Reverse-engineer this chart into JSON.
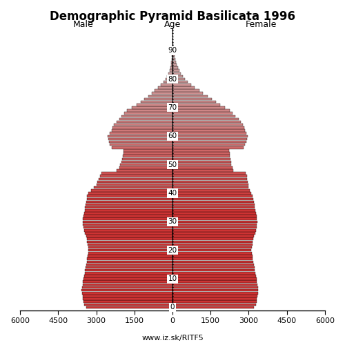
{
  "title": "Demographic Pyramid Basilicata 1996",
  "male_label": "Male",
  "female_label": "Female",
  "age_label": "Age",
  "url_text": "www.iz.sk/RITF5",
  "xlim": 6000,
  "ages": [
    0,
    1,
    2,
    3,
    4,
    5,
    6,
    7,
    8,
    9,
    10,
    11,
    12,
    13,
    14,
    15,
    16,
    17,
    18,
    19,
    20,
    21,
    22,
    23,
    24,
    25,
    26,
    27,
    28,
    29,
    30,
    31,
    32,
    33,
    34,
    35,
    36,
    37,
    38,
    39,
    40,
    41,
    42,
    43,
    44,
    45,
    46,
    47,
    48,
    49,
    50,
    51,
    52,
    53,
    54,
    55,
    56,
    57,
    58,
    59,
    60,
    61,
    62,
    63,
    64,
    65,
    66,
    67,
    68,
    69,
    70,
    71,
    72,
    73,
    74,
    75,
    76,
    77,
    78,
    79,
    80,
    81,
    82,
    83,
    84,
    85,
    86,
    87,
    88,
    89,
    90,
    91,
    92,
    93,
    94,
    95,
    96,
    97
  ],
  "male": [
    3400,
    3480,
    3500,
    3520,
    3540,
    3560,
    3580,
    3560,
    3540,
    3520,
    3500,
    3480,
    3460,
    3440,
    3420,
    3400,
    3380,
    3360,
    3340,
    3320,
    3300,
    3320,
    3340,
    3360,
    3380,
    3400,
    3450,
    3480,
    3500,
    3520,
    3540,
    3520,
    3500,
    3480,
    3460,
    3440,
    3420,
    3400,
    3380,
    3360,
    3300,
    3200,
    3100,
    3000,
    2950,
    2900,
    2850,
    2800,
    2200,
    2100,
    2050,
    2000,
    1980,
    1960,
    1940,
    1920,
    2400,
    2480,
    2500,
    2520,
    2540,
    2480,
    2400,
    2350,
    2300,
    2200,
    2100,
    2000,
    1900,
    1780,
    1600,
    1420,
    1260,
    1100,
    960,
    820,
    700,
    580,
    460,
    360,
    270,
    210,
    160,
    120,
    90,
    65,
    45,
    30,
    20,
    12,
    8,
    5,
    3,
    2,
    1,
    1,
    0,
    0
  ],
  "female": [
    3200,
    3280,
    3300,
    3320,
    3340,
    3360,
    3380,
    3360,
    3340,
    3320,
    3300,
    3280,
    3260,
    3240,
    3220,
    3200,
    3180,
    3160,
    3140,
    3120,
    3100,
    3120,
    3140,
    3160,
    3180,
    3200,
    3250,
    3280,
    3300,
    3320,
    3340,
    3320,
    3300,
    3280,
    3260,
    3240,
    3220,
    3200,
    3180,
    3160,
    3100,
    3050,
    3000,
    2980,
    2960,
    2940,
    2920,
    2880,
    2400,
    2350,
    2320,
    2300,
    2280,
    2260,
    2240,
    2220,
    2800,
    2850,
    2900,
    2920,
    2950,
    2900,
    2850,
    2820,
    2780,
    2700,
    2600,
    2480,
    2360,
    2240,
    2050,
    1880,
    1720,
    1550,
    1380,
    1200,
    1050,
    880,
    740,
    610,
    490,
    400,
    330,
    270,
    215,
    165,
    130,
    100,
    75,
    55,
    40,
    28,
    20,
    13,
    9,
    6,
    4,
    2
  ],
  "color_young": "#cd3333",
  "color_mid": "#d08080",
  "color_old": "#c8b0b0",
  "background": "#ffffff"
}
